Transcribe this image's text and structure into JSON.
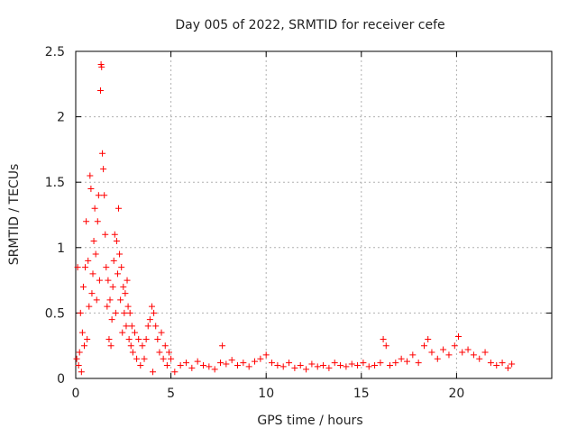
{
  "chart_data": {
    "type": "scatter",
    "title": "Day 005 of 2022, SRMTID for receiver cefe",
    "xlabel": "GPS time / hours",
    "ylabel": "SRMTID / TECUs",
    "xlim": [
      0,
      25
    ],
    "ylim": [
      0,
      2.5
    ],
    "x_ticks": [
      0,
      5,
      10,
      15,
      20
    ],
    "x_tick_labels": [
      "0",
      "5",
      "10",
      "15",
      "20"
    ],
    "y_ticks": [
      0,
      0.5,
      1,
      1.5,
      2,
      2.5
    ],
    "y_tick_labels": [
      "0",
      "0.5",
      "1",
      "1.5",
      "2",
      "2.5"
    ],
    "grid": true,
    "marker": "+",
    "series": [
      {
        "name": "cefe",
        "color": "#ff0000",
        "points": [
          [
            0.05,
            0.15
          ],
          [
            0.1,
            0.85
          ],
          [
            0.15,
            0.1
          ],
          [
            0.2,
            0.2
          ],
          [
            0.25,
            0.5
          ],
          [
            0.3,
            0.05
          ],
          [
            0.35,
            0.35
          ],
          [
            0.4,
            0.7
          ],
          [
            0.45,
            0.25
          ],
          [
            0.5,
            0.85
          ],
          [
            0.55,
            1.2
          ],
          [
            0.6,
            0.3
          ],
          [
            0.65,
            0.9
          ],
          [
            0.7,
            0.55
          ],
          [
            0.75,
            1.55
          ],
          [
            0.8,
            1.45
          ],
          [
            0.85,
            0.65
          ],
          [
            0.9,
            0.8
          ],
          [
            0.95,
            1.05
          ],
          [
            1.0,
            1.3
          ],
          [
            1.05,
            0.95
          ],
          [
            1.1,
            0.6
          ],
          [
            1.15,
            1.2
          ],
          [
            1.2,
            1.4
          ],
          [
            1.25,
            0.75
          ],
          [
            1.3,
            2.2
          ],
          [
            1.33,
            2.4
          ],
          [
            1.36,
            2.38
          ],
          [
            1.4,
            1.72
          ],
          [
            1.45,
            1.6
          ],
          [
            1.5,
            1.4
          ],
          [
            1.55,
            1.1
          ],
          [
            1.6,
            0.85
          ],
          [
            1.65,
            0.55
          ],
          [
            1.7,
            0.75
          ],
          [
            1.75,
            0.3
          ],
          [
            1.8,
            0.6
          ],
          [
            1.85,
            0.25
          ],
          [
            1.9,
            0.45
          ],
          [
            1.95,
            0.7
          ],
          [
            2.0,
            0.9
          ],
          [
            2.05,
            1.1
          ],
          [
            2.1,
            0.5
          ],
          [
            2.15,
            1.05
          ],
          [
            2.2,
            0.8
          ],
          [
            2.25,
            1.3
          ],
          [
            2.3,
            0.95
          ],
          [
            2.35,
            0.6
          ],
          [
            2.4,
            0.85
          ],
          [
            2.45,
            0.35
          ],
          [
            2.5,
            0.7
          ],
          [
            2.55,
            0.5
          ],
          [
            2.6,
            0.65
          ],
          [
            2.65,
            0.4
          ],
          [
            2.7,
            0.75
          ],
          [
            2.75,
            0.55
          ],
          [
            2.8,
            0.3
          ],
          [
            2.85,
            0.5
          ],
          [
            2.9,
            0.25
          ],
          [
            2.95,
            0.4
          ],
          [
            3.0,
            0.2
          ],
          [
            3.1,
            0.35
          ],
          [
            3.2,
            0.15
          ],
          [
            3.3,
            0.3
          ],
          [
            3.4,
            0.1
          ],
          [
            3.5,
            0.25
          ],
          [
            3.6,
            0.15
          ],
          [
            3.7,
            0.3
          ],
          [
            3.8,
            0.4
          ],
          [
            3.9,
            0.45
          ],
          [
            4.0,
            0.55
          ],
          [
            4.05,
            0.05
          ],
          [
            4.1,
            0.5
          ],
          [
            4.2,
            0.4
          ],
          [
            4.3,
            0.3
          ],
          [
            4.4,
            0.2
          ],
          [
            4.5,
            0.35
          ],
          [
            4.6,
            0.15
          ],
          [
            4.7,
            0.25
          ],
          [
            4.8,
            0.1
          ],
          [
            4.9,
            0.2
          ],
          [
            5.0,
            0.15
          ],
          [
            5.2,
            0.05
          ],
          [
            5.5,
            0.1
          ],
          [
            5.8,
            0.12
          ],
          [
            6.1,
            0.08
          ],
          [
            6.4,
            0.13
          ],
          [
            6.7,
            0.1
          ],
          [
            7.0,
            0.09
          ],
          [
            7.3,
            0.07
          ],
          [
            7.6,
            0.12
          ],
          [
            7.7,
            0.25
          ],
          [
            7.9,
            0.11
          ],
          [
            8.2,
            0.14
          ],
          [
            8.5,
            0.1
          ],
          [
            8.8,
            0.12
          ],
          [
            9.1,
            0.09
          ],
          [
            9.4,
            0.13
          ],
          [
            9.7,
            0.15
          ],
          [
            10.0,
            0.18
          ],
          [
            10.3,
            0.12
          ],
          [
            10.6,
            0.1
          ],
          [
            10.9,
            0.09
          ],
          [
            11.2,
            0.12
          ],
          [
            11.5,
            0.08
          ],
          [
            11.8,
            0.1
          ],
          [
            12.1,
            0.07
          ],
          [
            12.4,
            0.11
          ],
          [
            12.7,
            0.09
          ],
          [
            13.0,
            0.1
          ],
          [
            13.3,
            0.08
          ],
          [
            13.6,
            0.12
          ],
          [
            13.9,
            0.1
          ],
          [
            14.2,
            0.09
          ],
          [
            14.5,
            0.11
          ],
          [
            14.8,
            0.1
          ],
          [
            15.1,
            0.12
          ],
          [
            15.4,
            0.09
          ],
          [
            15.7,
            0.1
          ],
          [
            16.0,
            0.12
          ],
          [
            16.15,
            0.3
          ],
          [
            16.3,
            0.25
          ],
          [
            16.5,
            0.1
          ],
          [
            16.8,
            0.12
          ],
          [
            17.1,
            0.15
          ],
          [
            17.4,
            0.13
          ],
          [
            17.7,
            0.18
          ],
          [
            18.0,
            0.12
          ],
          [
            18.3,
            0.25
          ],
          [
            18.5,
            0.3
          ],
          [
            18.7,
            0.2
          ],
          [
            19.0,
            0.15
          ],
          [
            19.3,
            0.22
          ],
          [
            19.6,
            0.18
          ],
          [
            19.9,
            0.25
          ],
          [
            20.1,
            0.32
          ],
          [
            20.3,
            0.2
          ],
          [
            20.6,
            0.22
          ],
          [
            20.9,
            0.18
          ],
          [
            21.2,
            0.15
          ],
          [
            21.5,
            0.2
          ],
          [
            21.8,
            0.12
          ],
          [
            22.1,
            0.1
          ],
          [
            22.4,
            0.12
          ],
          [
            22.7,
            0.08
          ],
          [
            22.9,
            0.11
          ]
        ]
      }
    ]
  }
}
